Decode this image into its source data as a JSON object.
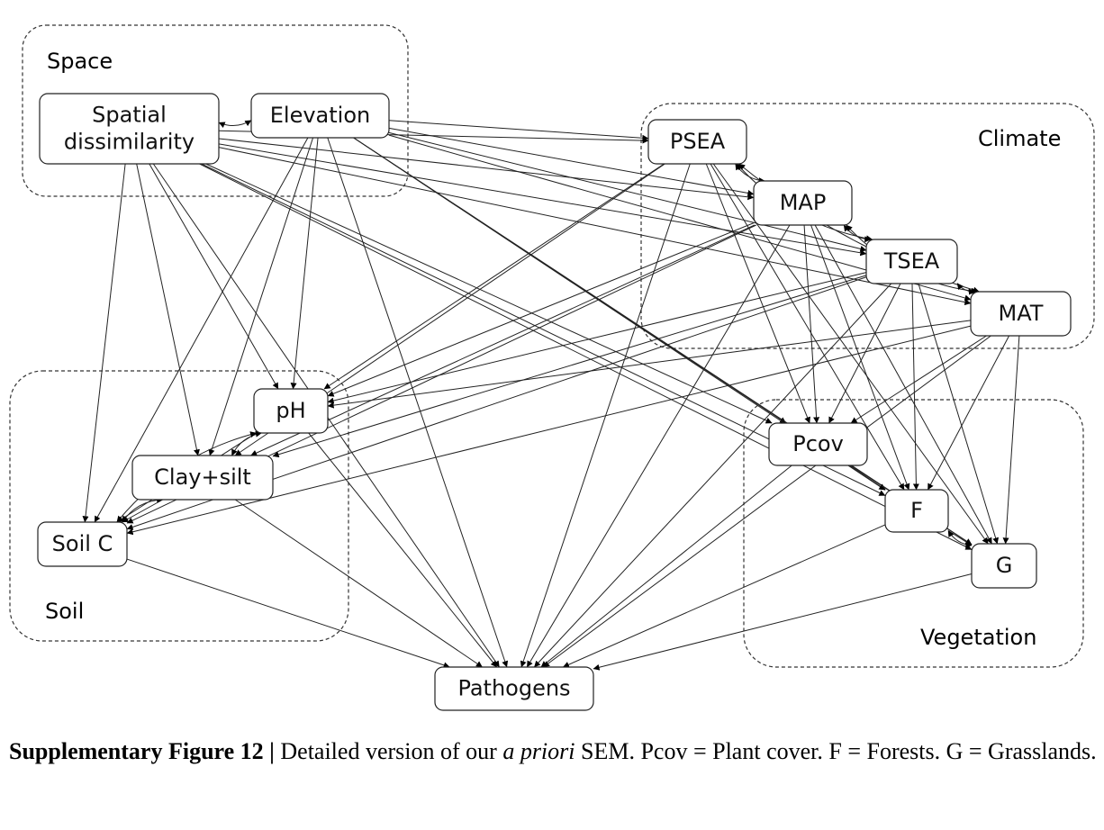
{
  "groups": [
    {
      "id": "space",
      "label": "Space"
    },
    {
      "id": "climate",
      "label": "Climate"
    },
    {
      "id": "soil",
      "label": "Soil"
    },
    {
      "id": "vegetation",
      "label": "Vegetation"
    }
  ],
  "nodes": [
    {
      "id": "SD",
      "lines": [
        "Spatial",
        "dissimilarity"
      ]
    },
    {
      "id": "EL",
      "lines": [
        "Elevation"
      ]
    },
    {
      "id": "PSEA",
      "lines": [
        "PSEA"
      ]
    },
    {
      "id": "MAP",
      "lines": [
        "MAP"
      ]
    },
    {
      "id": "TSEA",
      "lines": [
        "TSEA"
      ]
    },
    {
      "id": "MAT",
      "lines": [
        "MAT"
      ]
    },
    {
      "id": "PH",
      "lines": [
        "pH"
      ]
    },
    {
      "id": "CS",
      "lines": [
        "Clay+silt"
      ]
    },
    {
      "id": "SC",
      "lines": [
        "Soil C"
      ]
    },
    {
      "id": "PCOV",
      "lines": [
        "Pcov"
      ]
    },
    {
      "id": "F",
      "lines": [
        "F"
      ]
    },
    {
      "id": "G",
      "lines": [
        "G"
      ]
    },
    {
      "id": "PATH",
      "lines": [
        "Pathogens"
      ]
    }
  ],
  "edges": [
    [
      "SD",
      "PSEA"
    ],
    [
      "SD",
      "MAP"
    ],
    [
      "SD",
      "TSEA"
    ],
    [
      "SD",
      "MAT"
    ],
    [
      "SD",
      "PH"
    ],
    [
      "SD",
      "CS"
    ],
    [
      "SD",
      "SC"
    ],
    [
      "SD",
      "PCOV"
    ],
    [
      "SD",
      "F"
    ],
    [
      "SD",
      "G"
    ],
    [
      "SD",
      "PATH"
    ],
    [
      "EL",
      "PSEA"
    ],
    [
      "EL",
      "MAP"
    ],
    [
      "EL",
      "TSEA"
    ],
    [
      "EL",
      "MAT"
    ],
    [
      "EL",
      "PH"
    ],
    [
      "EL",
      "CS"
    ],
    [
      "EL",
      "SC"
    ],
    [
      "EL",
      "PCOV"
    ],
    [
      "EL",
      "F"
    ],
    [
      "EL",
      "G"
    ],
    [
      "EL",
      "PATH"
    ],
    [
      "PSEA",
      "PH"
    ],
    [
      "PSEA",
      "CS"
    ],
    [
      "PSEA",
      "PCOV"
    ],
    [
      "PSEA",
      "F"
    ],
    [
      "PSEA",
      "G"
    ],
    [
      "PSEA",
      "PATH"
    ],
    [
      "MAP",
      "PH"
    ],
    [
      "MAP",
      "CS"
    ],
    [
      "MAP",
      "SC"
    ],
    [
      "MAP",
      "PCOV"
    ],
    [
      "MAP",
      "F"
    ],
    [
      "MAP",
      "G"
    ],
    [
      "MAP",
      "PATH"
    ],
    [
      "TSEA",
      "PH"
    ],
    [
      "TSEA",
      "CS"
    ],
    [
      "TSEA",
      "SC"
    ],
    [
      "TSEA",
      "PCOV"
    ],
    [
      "TSEA",
      "F"
    ],
    [
      "TSEA",
      "G"
    ],
    [
      "TSEA",
      "PATH"
    ],
    [
      "MAT",
      "PH"
    ],
    [
      "MAT",
      "SC"
    ],
    [
      "MAT",
      "PCOV"
    ],
    [
      "MAT",
      "F"
    ],
    [
      "MAT",
      "G"
    ],
    [
      "MAT",
      "PATH"
    ],
    [
      "PH",
      "SC"
    ],
    [
      "PH",
      "PATH"
    ],
    [
      "CS",
      "SC"
    ],
    [
      "CS",
      "PATH"
    ],
    [
      "SC",
      "PATH"
    ],
    [
      "PCOV",
      "F"
    ],
    [
      "PCOV",
      "G"
    ],
    [
      "PCOV",
      "PATH"
    ],
    [
      "F",
      "G"
    ],
    [
      "F",
      "PATH"
    ],
    [
      "G",
      "PATH"
    ]
  ],
  "bidirectional": [
    [
      "SD",
      "EL"
    ],
    [
      "PSEA",
      "MAP"
    ],
    [
      "PSEA",
      "TSEA"
    ],
    [
      "PSEA",
      "MAT"
    ],
    [
      "MAP",
      "TSEA"
    ],
    [
      "MAP",
      "MAT"
    ],
    [
      "TSEA",
      "MAT"
    ],
    [
      "PH",
      "CS"
    ],
    [
      "PH",
      "SC"
    ],
    [
      "CS",
      "SC"
    ],
    [
      "F",
      "G"
    ]
  ],
  "caption": {
    "label": "Supplementary Figure 12 |",
    "text_before_italic": " Detailed version of our ",
    "italic": "a priori",
    "text_after_italic": " SEM. Pcov = Plant cover. F = Forests. G = Grasslands."
  }
}
